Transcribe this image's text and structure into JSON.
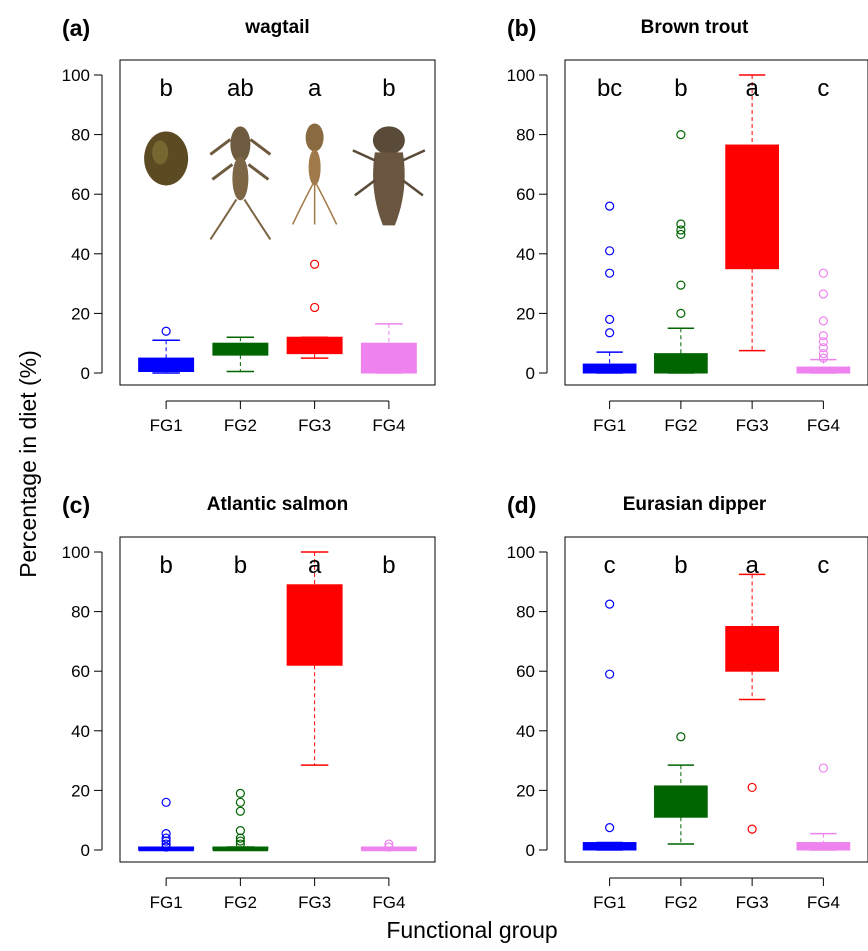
{
  "figure": {
    "ylabel": "Percentage in diet (%)",
    "xlabel": "Functional group"
  },
  "colors": {
    "FG1": "#0000ff",
    "FG2": "#006400",
    "FG3": "#ff0000",
    "FG4": "#ee82ee"
  },
  "chart_data": [
    {
      "type": "box",
      "panel": "(a)",
      "title": "wagtail",
      "categories": [
        "FG1",
        "FG2",
        "FG3",
        "FG4"
      ],
      "ylim": [
        0,
        100
      ],
      "yticks": [
        0,
        20,
        40,
        60,
        80,
        100
      ],
      "letters": [
        "b",
        "ab",
        "a",
        "b"
      ],
      "images": [
        "beetle-image",
        "stonefly-nymph-image",
        "mayfly-nymph-image",
        "caddis-larva-image"
      ],
      "boxes": [
        {
          "low": 0,
          "q1": 0.5,
          "median": 1.5,
          "q3": 5,
          "high": 11,
          "outliers": [
            14
          ]
        },
        {
          "low": 0.5,
          "q1": 6,
          "median": 8,
          "q3": 10,
          "high": 12,
          "outliers": []
        },
        {
          "low": 5,
          "q1": 6.5,
          "median": 9,
          "q3": 12,
          "high": 12,
          "outliers": [
            22,
            36.5
          ]
        },
        {
          "low": 0,
          "q1": 0,
          "median": 0.5,
          "q3": 10,
          "high": 16.5,
          "outliers": []
        }
      ]
    },
    {
      "type": "box",
      "panel": "(b)",
      "title": "Brown trout",
      "categories": [
        "FG1",
        "FG2",
        "FG3",
        "FG4"
      ],
      "ylim": [
        0,
        100
      ],
      "yticks": [
        0,
        20,
        40,
        60,
        80,
        100
      ],
      "letters": [
        "bc",
        "b",
        "a",
        "c"
      ],
      "boxes": [
        {
          "low": 0,
          "q1": 0,
          "median": 1,
          "q3": 3,
          "high": 7,
          "outliers": [
            13.5,
            18,
            33.5,
            41,
            56
          ]
        },
        {
          "low": 0,
          "q1": 0,
          "median": 2,
          "q3": 6.5,
          "high": 15,
          "outliers": [
            20,
            29.5,
            46.5,
            48,
            50,
            80
          ]
        },
        {
          "low": 7.5,
          "q1": 35,
          "median": 57,
          "q3": 76.5,
          "high": 100,
          "outliers": []
        },
        {
          "low": 0,
          "q1": 0,
          "median": 0.5,
          "q3": 2,
          "high": 4.5,
          "outliers": [
            5,
            6.5,
            8.5,
            10.5,
            12.5,
            17.5,
            26.5,
            33.5
          ]
        }
      ]
    },
    {
      "type": "box",
      "panel": "(c)",
      "title": "Atlantic salmon",
      "categories": [
        "FG1",
        "FG2",
        "FG3",
        "FG4"
      ],
      "ylim": [
        0,
        100
      ],
      "yticks": [
        0,
        20,
        40,
        60,
        80,
        100
      ],
      "letters": [
        "b",
        "b",
        "a",
        "b"
      ],
      "boxes": [
        {
          "low": 0,
          "q1": 0,
          "median": 0,
          "q3": 0.5,
          "high": 0.5,
          "outliers": [
            1,
            2,
            3,
            4,
            5.5,
            16
          ]
        },
        {
          "low": 0,
          "q1": 0,
          "median": 0,
          "q3": 1,
          "high": 1,
          "outliers": [
            2,
            3,
            4,
            6.5,
            13,
            16,
            19
          ]
        },
        {
          "low": 28.5,
          "q1": 62,
          "median": 78,
          "q3": 89,
          "high": 100,
          "outliers": []
        },
        {
          "low": 0,
          "q1": 0,
          "median": 0,
          "q3": 0.5,
          "high": 0.5,
          "outliers": [
            1,
            2
          ]
        }
      ]
    },
    {
      "type": "box",
      "panel": "(d)",
      "title": "Eurasian dipper",
      "categories": [
        "FG1",
        "FG2",
        "FG3",
        "FG4"
      ],
      "ylim": [
        0,
        100
      ],
      "yticks": [
        0,
        20,
        40,
        60,
        80,
        100
      ],
      "letters": [
        "c",
        "b",
        "a",
        "c"
      ],
      "boxes": [
        {
          "low": 0,
          "q1": 0,
          "median": 1,
          "q3": 2.5,
          "high": 2.5,
          "outliers": [
            7.5,
            59,
            82.5
          ]
        },
        {
          "low": 2,
          "q1": 11,
          "median": 16,
          "q3": 21.5,
          "high": 28.5,
          "outliers": [
            38
          ]
        },
        {
          "low": 50.5,
          "q1": 60,
          "median": 68,
          "q3": 75,
          "high": 92.5,
          "outliers": [
            7,
            21
          ]
        },
        {
          "low": 0,
          "q1": 0,
          "median": 1,
          "q3": 2.5,
          "high": 5.5,
          "outliers": [
            27.5
          ]
        }
      ]
    }
  ]
}
